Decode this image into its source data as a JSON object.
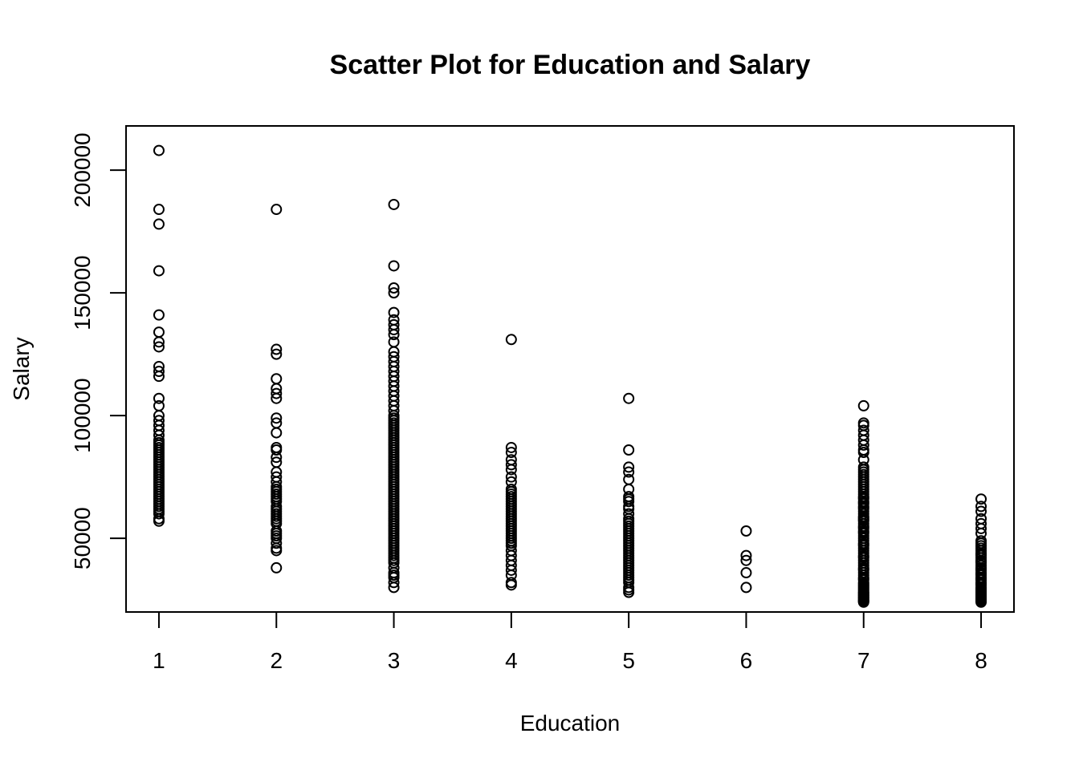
{
  "chart_data": {
    "type": "scatter",
    "title": "Scatter Plot for Education and Salary",
    "xlabel": "Education",
    "ylabel": "Salary",
    "xlim": [
      0.72,
      8.28
    ],
    "ylim": [
      20000,
      218000
    ],
    "x_ticks": [
      1,
      2,
      3,
      4,
      5,
      6,
      7,
      8
    ],
    "x_tick_labels": [
      "1",
      "2",
      "3",
      "4",
      "5",
      "6",
      "7",
      "8"
    ],
    "y_ticks": [
      50000,
      100000,
      150000,
      200000
    ],
    "y_tick_labels": [
      "50000",
      "100000",
      "150000",
      "200000"
    ],
    "grid": false,
    "legend": "none",
    "marker": "open-circle",
    "series": [
      {
        "x": [
          1,
          1,
          1,
          1,
          1,
          1,
          1,
          1,
          1,
          1,
          1,
          1,
          1,
          1,
          1,
          1,
          1,
          1,
          1,
          1,
          1,
          1,
          1,
          1,
          1,
          1,
          1,
          1,
          1,
          1,
          1,
          1,
          1,
          1,
          1,
          1,
          1,
          1,
          1,
          1,
          1,
          1,
          1,
          1,
          1,
          1,
          1,
          1,
          1,
          1,
          1
        ],
        "y": [
          208000,
          184000,
          178000,
          159000,
          141000,
          134000,
          130000,
          128000,
          120000,
          118000,
          116000,
          107000,
          104000,
          100000,
          98000,
          96000,
          94000,
          92000,
          90000,
          89000,
          88000,
          87000,
          86000,
          85000,
          84000,
          83000,
          82000,
          81000,
          80000,
          79000,
          78000,
          77000,
          76000,
          75000,
          74000,
          73000,
          72000,
          71000,
          70000,
          69000,
          68000,
          67000,
          66000,
          65000,
          64000,
          63000,
          62000,
          61000,
          60000,
          58000,
          57000
        ]
      },
      {
        "x": [
          2,
          2,
          2,
          2,
          2,
          2,
          2,
          2,
          2,
          2,
          2,
          2,
          2,
          2,
          2,
          2,
          2,
          2,
          2,
          2,
          2,
          2,
          2,
          2,
          2,
          2,
          2,
          2,
          2,
          2,
          2,
          2,
          2,
          2,
          2,
          2,
          2,
          2,
          2,
          2
        ],
        "y": [
          184000,
          127000,
          125000,
          115000,
          111000,
          109000,
          107000,
          99000,
          97000,
          93000,
          87000,
          86000,
          83000,
          81000,
          77000,
          75000,
          73000,
          71000,
          70000,
          69000,
          68000,
          67000,
          66000,
          65000,
          63000,
          61000,
          60000,
          59000,
          58000,
          57000,
          56000,
          52000,
          51000,
          50000,
          48000,
          46000,
          38000,
          45000,
          53000,
          62000
        ]
      },
      {
        "x": [
          3,
          3,
          3,
          3,
          3,
          3,
          3,
          3,
          3,
          3,
          3,
          3,
          3,
          3,
          3,
          3,
          3,
          3,
          3,
          3,
          3,
          3,
          3,
          3,
          3,
          3,
          3,
          3,
          3,
          3,
          3,
          3,
          3,
          3,
          3,
          3,
          3,
          3,
          3,
          3,
          3,
          3,
          3,
          3,
          3,
          3,
          3,
          3,
          3,
          3,
          3,
          3,
          3,
          3,
          3,
          3,
          3,
          3,
          3,
          3,
          3,
          3,
          3,
          3,
          3,
          3,
          3,
          3,
          3,
          3,
          3,
          3,
          3,
          3,
          3,
          3,
          3,
          3,
          3,
          3,
          3,
          3,
          3,
          3,
          3,
          3,
          3,
          3,
          3,
          3
        ],
        "y": [
          186000,
          161000,
          152000,
          150000,
          142000,
          139000,
          137000,
          135000,
          133000,
          130000,
          126000,
          124000,
          122000,
          120000,
          118000,
          116000,
          114000,
          112000,
          110000,
          108000,
          106000,
          104000,
          102000,
          100000,
          99000,
          98000,
          97000,
          96000,
          95000,
          94000,
          93000,
          92000,
          91000,
          90000,
          89000,
          88000,
          87000,
          86000,
          85000,
          84000,
          83000,
          82000,
          81000,
          80000,
          79000,
          78000,
          77000,
          76000,
          75000,
          74000,
          73000,
          72000,
          71000,
          70000,
          69000,
          68000,
          67000,
          66000,
          65000,
          64000,
          63000,
          62000,
          61000,
          60000,
          59000,
          58000,
          57000,
          56000,
          55000,
          54000,
          53000,
          52000,
          51000,
          50000,
          49000,
          48000,
          47000,
          46000,
          45000,
          44000,
          43000,
          42000,
          41000,
          40000,
          38000,
          36000,
          35000,
          34000,
          32000,
          30000
        ]
      },
      {
        "x": [
          4,
          4,
          4,
          4,
          4,
          4,
          4,
          4,
          4,
          4,
          4,
          4,
          4,
          4,
          4,
          4,
          4,
          4,
          4,
          4,
          4,
          4,
          4,
          4,
          4,
          4,
          4,
          4,
          4,
          4,
          4,
          4,
          4,
          4,
          4,
          4,
          4,
          4,
          4,
          4
        ],
        "y": [
          131000,
          87000,
          85000,
          82000,
          80000,
          78000,
          75000,
          73000,
          70000,
          69000,
          68000,
          67000,
          66000,
          65000,
          64000,
          63000,
          62000,
          61000,
          60000,
          59000,
          58000,
          57000,
          56000,
          55000,
          54000,
          53000,
          52000,
          51000,
          50000,
          49000,
          48000,
          47000,
          45000,
          43000,
          41000,
          39000,
          37000,
          35000,
          32000,
          31000
        ]
      },
      {
        "x": [
          5,
          5,
          5,
          5,
          5,
          5,
          5,
          5,
          5,
          5,
          5,
          5,
          5,
          5,
          5,
          5,
          5,
          5,
          5,
          5,
          5,
          5,
          5,
          5,
          5,
          5,
          5,
          5,
          5,
          5,
          5,
          5,
          5,
          5,
          5,
          5,
          5,
          5,
          5,
          5,
          5,
          5
        ],
        "y": [
          107000,
          86000,
          79000,
          77000,
          74000,
          70000,
          67000,
          66000,
          65000,
          63000,
          62000,
          60000,
          58000,
          57000,
          56000,
          55000,
          54000,
          53000,
          52000,
          51000,
          50000,
          49000,
          48000,
          47000,
          46000,
          45000,
          44000,
          43000,
          42000,
          41000,
          40000,
          39000,
          38000,
          37000,
          36000,
          35000,
          34000,
          33000,
          32000,
          30000,
          29000,
          28000
        ]
      },
      {
        "x": [
          6,
          6,
          6,
          6,
          6
        ],
        "y": [
          53000,
          43000,
          41000,
          36000,
          30000
        ]
      },
      {
        "x": [
          7,
          7,
          7,
          7,
          7,
          7,
          7,
          7,
          7,
          7,
          7,
          7,
          7,
          7,
          7,
          7,
          7,
          7,
          7,
          7,
          7,
          7,
          7,
          7,
          7,
          7,
          7,
          7,
          7,
          7,
          7,
          7,
          7,
          7,
          7,
          7,
          7,
          7,
          7,
          7,
          7,
          7,
          7,
          7,
          7,
          7,
          7,
          7,
          7,
          7,
          7,
          7,
          7,
          7,
          7,
          7,
          7,
          7,
          7,
          7,
          7,
          7,
          7,
          7,
          7,
          7,
          7,
          7,
          7,
          7,
          7,
          7,
          7,
          7,
          7,
          7,
          7,
          7,
          7,
          7,
          7,
          7,
          7,
          7,
          7,
          7,
          7,
          7,
          7,
          7
        ],
        "y": [
          104000,
          97000,
          96000,
          94000,
          92000,
          90000,
          88000,
          86000,
          85000,
          82000,
          79000,
          78000,
          77000,
          76000,
          75000,
          74000,
          73000,
          72000,
          71000,
          70000,
          69000,
          68000,
          67000,
          66000,
          65000,
          64000,
          63000,
          62000,
          61000,
          60000,
          59000,
          58000,
          57000,
          56000,
          55000,
          54000,
          53000,
          52000,
          51000,
          50000,
          49000,
          48000,
          47000,
          46000,
          45000,
          44000,
          43000,
          42000,
          41000,
          40000,
          39000,
          38000,
          37000,
          36000,
          35000,
          34000,
          33000,
          32000,
          31000,
          30000,
          29500,
          29000,
          28500,
          28000,
          27500,
          27000,
          26500,
          26000,
          25500,
          25000,
          24500,
          24000,
          62500,
          57500,
          52500,
          47500,
          42500,
          37500,
          33500,
          31500,
          30500,
          27800,
          26800,
          25800,
          24800,
          24200,
          66500,
          64500,
          58500,
          54500
        ]
      },
      {
        "x": [
          8,
          8,
          8,
          8,
          8,
          8,
          8,
          8,
          8,
          8,
          8,
          8,
          8,
          8,
          8,
          8,
          8,
          8,
          8,
          8,
          8,
          8,
          8,
          8,
          8,
          8,
          8,
          8,
          8,
          8,
          8,
          8,
          8,
          8,
          8,
          8,
          8,
          8,
          8,
          8,
          8,
          8,
          8,
          8,
          8,
          8
        ],
        "y": [
          66000,
          63000,
          61000,
          58000,
          56000,
          54000,
          52000,
          49000,
          48000,
          47000,
          46000,
          45000,
          44000,
          43000,
          42000,
          41000,
          40000,
          39000,
          38000,
          37000,
          36000,
          35000,
          34000,
          33000,
          32000,
          31000,
          30000,
          29500,
          29000,
          28500,
          28000,
          27500,
          27000,
          26500,
          26000,
          25500,
          25000,
          24500,
          24000,
          43500,
          40500,
          37500,
          35500,
          33500,
          31500,
          25200
        ]
      }
    ]
  }
}
